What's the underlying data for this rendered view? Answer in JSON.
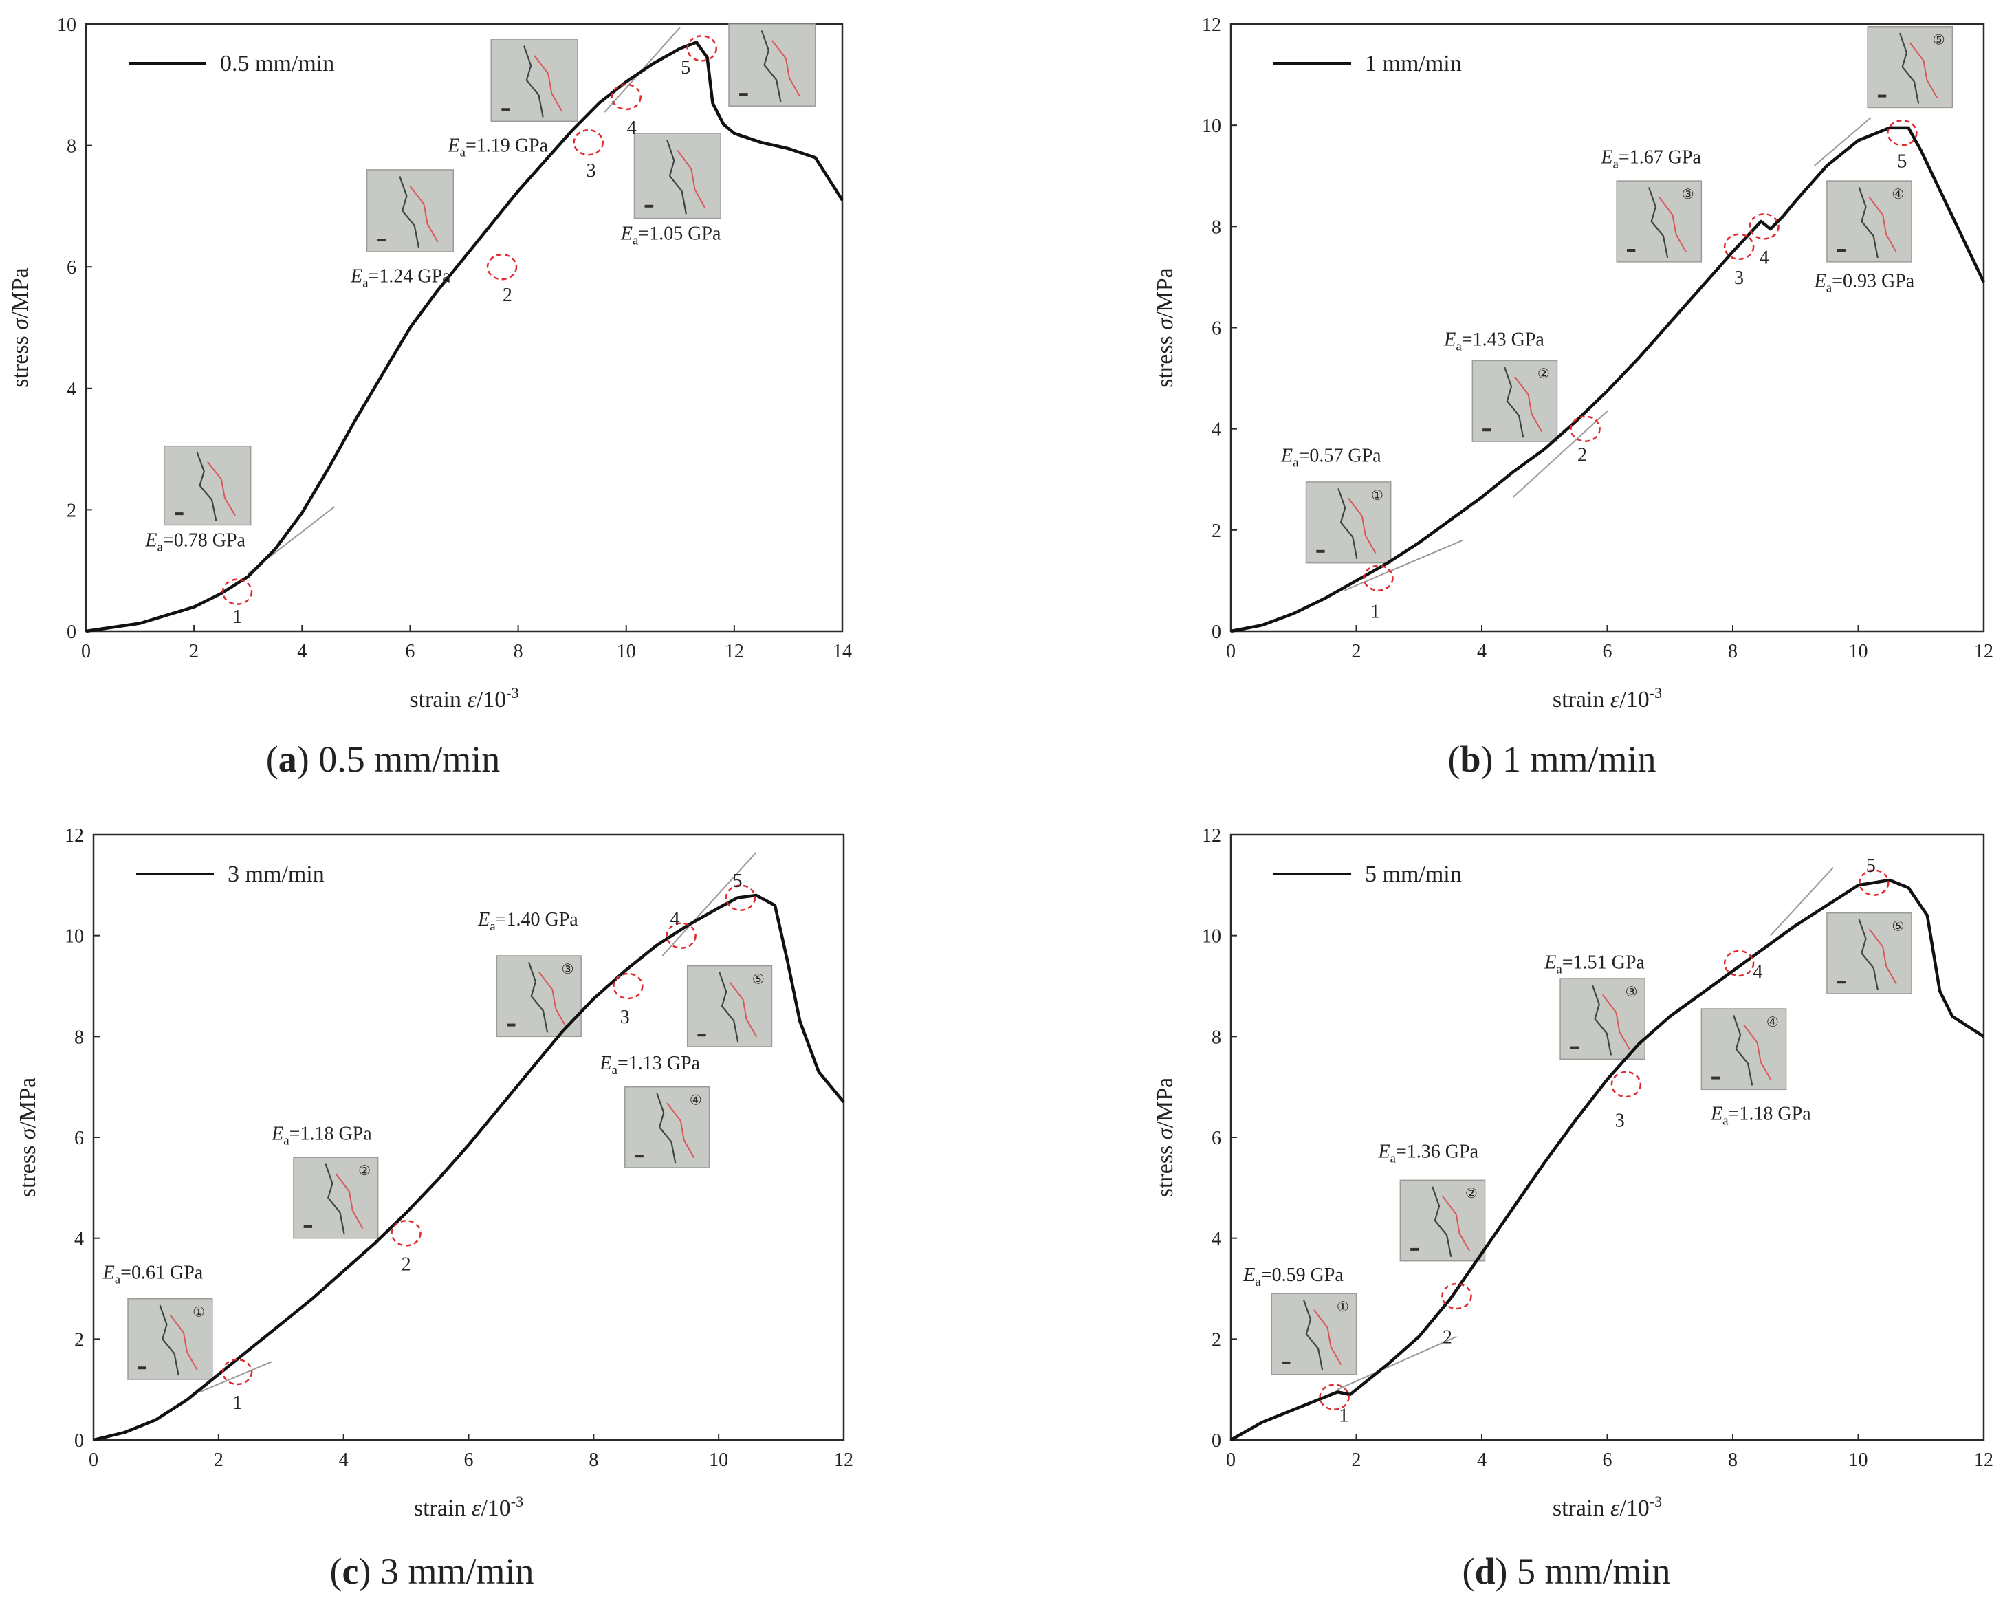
{
  "chart_data": [
    {
      "type": "line",
      "panel_id": "a",
      "caption": {
        "letter": "a",
        "text": " 0.5 mm/min"
      },
      "legend": "0.5 mm/min",
      "xlabel": {
        "prefix": "strain ",
        "symbol": "ε",
        "unit": "/10",
        "exp": "-3"
      },
      "ylabel": {
        "prefix": "stress ",
        "symbol": "σ",
        "unit": "/MPa"
      },
      "xlim": [
        0,
        14
      ],
      "ylim": [
        0,
        10
      ],
      "xticks": [
        0,
        2,
        4,
        6,
        8,
        10,
        12,
        14
      ],
      "yticks": [
        0,
        2,
        4,
        6,
        8,
        10
      ],
      "series": [
        {
          "name": "0.5 mm/min",
          "x": [
            0,
            1,
            2,
            2.5,
            3,
            3.5,
            4,
            4.5,
            5,
            5.5,
            6,
            6.5,
            7,
            7.5,
            8,
            8.5,
            9,
            9.5,
            10,
            10.5,
            11,
            11.3,
            11.5,
            11.6,
            11.8,
            12,
            12.5,
            13,
            13.5,
            14
          ],
          "y": [
            0,
            0.13,
            0.4,
            0.62,
            0.9,
            1.35,
            1.95,
            2.7,
            3.5,
            4.25,
            5.0,
            5.6,
            6.15,
            6.7,
            7.25,
            7.75,
            8.25,
            8.7,
            9.05,
            9.35,
            9.6,
            9.7,
            9.45,
            8.7,
            8.35,
            8.2,
            8.05,
            7.95,
            7.8,
            7.1
          ]
        }
      ],
      "markers": [
        {
          "label": "1",
          "x": 2.8,
          "y": 0.65,
          "lx": 2.8,
          "ly": 0.25
        },
        {
          "label": "2",
          "x": 7.7,
          "y": 6.0,
          "lx": 7.8,
          "ly": 5.55
        },
        {
          "label": "3",
          "x": 9.3,
          "y": 8.05,
          "lx": 9.35,
          "ly": 7.6
        },
        {
          "label": "4",
          "x": 10.0,
          "y": 8.8,
          "lx": 10.1,
          "ly": 8.3
        },
        {
          "label": "5",
          "x": 11.4,
          "y": 9.6,
          "lx": 11.1,
          "ly": 9.3
        }
      ],
      "tangents": [
        {
          "x1": 3.0,
          "y1": 0.95,
          "x2": 4.6,
          "y2": 2.05
        },
        {
          "x1": 9.6,
          "y1": 8.55,
          "x2": 11.0,
          "y2": 9.95
        }
      ],
      "annotations": [
        {
          "value": "0.78",
          "x": 1.1,
          "y": 1.4
        },
        {
          "value": "1.24",
          "x": 4.9,
          "y": 5.75
        },
        {
          "value": "1.19",
          "x": 6.7,
          "y": 7.9
        },
        {
          "value": "1.05",
          "x": 9.9,
          "y": 6.45
        }
      ],
      "photos": [
        {
          "label": "",
          "x0": 1.45,
          "x1": 3.05,
          "y0": 1.75,
          "y1": 3.05
        },
        {
          "label": "",
          "x0": 5.2,
          "x1": 6.8,
          "y0": 6.25,
          "y1": 7.6
        },
        {
          "label": "",
          "x0": 7.5,
          "x1": 9.1,
          "y0": 8.4,
          "y1": 9.75
        },
        {
          "label": "",
          "x0": 10.15,
          "x1": 11.75,
          "y0": 6.8,
          "y1": 8.2
        },
        {
          "label": "",
          "x0": 11.9,
          "x1": 13.5,
          "y0": 8.65,
          "y1": 10.0
        }
      ]
    },
    {
      "type": "line",
      "panel_id": "b",
      "caption": {
        "letter": "b",
        "text": " 1 mm/min"
      },
      "legend": "1 mm/min",
      "xlabel": {
        "prefix": "strain ",
        "symbol": "ε",
        "unit": "/10",
        "exp": "-3"
      },
      "ylabel": {
        "prefix": "stress ",
        "symbol": "σ",
        "unit": "/MPa"
      },
      "xlim": [
        0,
        12
      ],
      "ylim": [
        0,
        12
      ],
      "xticks": [
        0,
        2,
        4,
        6,
        8,
        10,
        12
      ],
      "yticks": [
        0,
        2,
        4,
        6,
        8,
        10,
        12
      ],
      "series": [
        {
          "name": "1 mm/min",
          "x": [
            0,
            0.5,
            1,
            1.5,
            2,
            2.5,
            3,
            3.5,
            4,
            4.5,
            5,
            5.5,
            6,
            6.5,
            7,
            7.5,
            8,
            8.3,
            8.45,
            8.6,
            8.8,
            9,
            9.5,
            10,
            10.5,
            10.8,
            11,
            11.5,
            12
          ],
          "y": [
            0,
            0.12,
            0.35,
            0.65,
            1.0,
            1.35,
            1.75,
            2.2,
            2.65,
            3.15,
            3.6,
            4.15,
            4.75,
            5.4,
            6.1,
            6.8,
            7.5,
            7.9,
            8.1,
            7.95,
            8.2,
            8.5,
            9.2,
            9.7,
            9.95,
            9.95,
            9.5,
            8.2,
            6.9
          ]
        }
      ],
      "markers": [
        {
          "label": "1",
          "x": 2.35,
          "y": 1.05,
          "lx": 2.3,
          "ly": 0.4
        },
        {
          "label": "2",
          "x": 5.65,
          "y": 4.0,
          "lx": 5.6,
          "ly": 3.5
        },
        {
          "label": "3",
          "x": 8.1,
          "y": 7.6,
          "lx": 8.1,
          "ly": 7.0
        },
        {
          "label": "4",
          "x": 8.5,
          "y": 8.0,
          "lx": 8.5,
          "ly": 7.4
        },
        {
          "label": "5",
          "x": 10.7,
          "y": 9.85,
          "lx": 10.7,
          "ly": 9.3
        }
      ],
      "tangents": [
        {
          "x1": 1.8,
          "y1": 0.8,
          "x2": 3.7,
          "y2": 1.8
        },
        {
          "x1": 4.5,
          "y1": 2.65,
          "x2": 6.0,
          "y2": 4.35
        },
        {
          "x1": 9.3,
          "y1": 9.2,
          "x2": 10.2,
          "y2": 10.15
        }
      ],
      "annotations": [
        {
          "value": "0.57",
          "x": 0.8,
          "y": 3.35
        },
        {
          "value": "1.43",
          "x": 3.4,
          "y": 5.65
        },
        {
          "value": "1.67",
          "x": 5.9,
          "y": 9.25
        },
        {
          "value": "0.93",
          "x": 9.3,
          "y": 6.8
        }
      ],
      "photos": [
        {
          "label": "①",
          "x0": 1.2,
          "x1": 2.55,
          "y0": 1.35,
          "y1": 2.95
        },
        {
          "label": "②",
          "x0": 3.85,
          "x1": 5.2,
          "y0": 3.75,
          "y1": 5.35
        },
        {
          "label": "③",
          "x0": 6.15,
          "x1": 7.5,
          "y0": 7.3,
          "y1": 8.9
        },
        {
          "label": "④",
          "x0": 9.5,
          "x1": 10.85,
          "y0": 7.3,
          "y1": 8.9
        },
        {
          "label": "⑤",
          "x0": 10.15,
          "x1": 11.5,
          "y0": 10.35,
          "y1": 11.95
        }
      ]
    },
    {
      "type": "line",
      "panel_id": "c",
      "caption": {
        "letter": "c",
        "text": " 3 mm/min"
      },
      "legend": "3 mm/min",
      "xlabel": {
        "prefix": "strain ",
        "symbol": "ε",
        "unit": "/10",
        "exp": "-3"
      },
      "ylabel": {
        "prefix": "stress ",
        "symbol": "σ",
        "unit": "/MPa"
      },
      "xlim": [
        0,
        12
      ],
      "ylim": [
        0,
        12
      ],
      "xticks": [
        0,
        2,
        4,
        6,
        8,
        10,
        12
      ],
      "yticks": [
        0,
        2,
        4,
        6,
        8,
        10,
        12
      ],
      "series": [
        {
          "name": "3 mm/min",
          "x": [
            0,
            0.5,
            1,
            1.5,
            2,
            2.5,
            3,
            3.5,
            4,
            4.5,
            5,
            5.5,
            6,
            6.5,
            7,
            7.5,
            8,
            8.5,
            9,
            9.5,
            10,
            10.3,
            10.6,
            10.9,
            11.1,
            11.3,
            11.6,
            12
          ],
          "y": [
            0,
            0.15,
            0.4,
            0.8,
            1.3,
            1.8,
            2.3,
            2.8,
            3.35,
            3.9,
            4.5,
            5.15,
            5.85,
            6.6,
            7.35,
            8.1,
            8.75,
            9.3,
            9.8,
            10.2,
            10.55,
            10.75,
            10.8,
            10.6,
            9.5,
            8.3,
            7.3,
            6.7
          ]
        }
      ],
      "markers": [
        {
          "label": "1",
          "x": 2.3,
          "y": 1.35,
          "lx": 2.3,
          "ly": 0.75
        },
        {
          "label": "2",
          "x": 5.0,
          "y": 4.1,
          "lx": 5.0,
          "ly": 3.5
        },
        {
          "label": "3",
          "x": 8.55,
          "y": 9.0,
          "lx": 8.5,
          "ly": 8.4
        },
        {
          "label": "4",
          "x": 9.4,
          "y": 10.0,
          "lx": 9.3,
          "ly": 10.35
        },
        {
          "label": "5",
          "x": 10.35,
          "y": 10.75,
          "lx": 10.3,
          "ly": 11.1
        }
      ],
      "tangents": [
        {
          "x1": 1.7,
          "y1": 0.95,
          "x2": 2.85,
          "y2": 1.55
        },
        {
          "x1": 9.1,
          "y1": 9.6,
          "x2": 10.6,
          "y2": 11.65
        }
      ],
      "annotations": [
        {
          "value": "0.61",
          "x": 0.15,
          "y": 3.2
        },
        {
          "value": "1.18",
          "x": 2.85,
          "y": 5.95
        },
        {
          "value": "1.40",
          "x": 6.15,
          "y": 10.2
        },
        {
          "value": "1.13",
          "x": 8.1,
          "y": 7.35
        }
      ],
      "photos": [
        {
          "label": "①",
          "x0": 0.55,
          "x1": 1.9,
          "y0": 1.2,
          "y1": 2.8
        },
        {
          "label": "②",
          "x0": 3.2,
          "x1": 4.55,
          "y0": 4.0,
          "y1": 5.6
        },
        {
          "label": "③",
          "x0": 6.45,
          "x1": 7.8,
          "y0": 8.0,
          "y1": 9.6
        },
        {
          "label": "⑤",
          "x0": 9.5,
          "x1": 10.85,
          "y0": 7.8,
          "y1": 9.4
        },
        {
          "label": "④",
          "x0": 8.5,
          "x1": 9.85,
          "y0": 5.4,
          "y1": 7.0
        }
      ]
    },
    {
      "type": "line",
      "panel_id": "d",
      "caption": {
        "letter": "d",
        "text": " 5 mm/min"
      },
      "legend": "5 mm/min",
      "xlabel": {
        "prefix": "strain ",
        "symbol": "ε",
        "unit": "/10",
        "exp": "-3"
      },
      "ylabel": {
        "prefix": "stress ",
        "symbol": "σ",
        "unit": "/MPa"
      },
      "xlim": [
        0,
        12
      ],
      "ylim": [
        0,
        12
      ],
      "xticks": [
        0,
        2,
        4,
        6,
        8,
        10,
        12
      ],
      "yticks": [
        0,
        2,
        4,
        6,
        8,
        10,
        12
      ],
      "series": [
        {
          "name": "5 mm/min",
          "x": [
            0,
            0.5,
            1,
            1.5,
            1.7,
            1.9,
            2.2,
            2.5,
            3,
            3.5,
            4,
            4.5,
            5,
            5.5,
            6,
            6.5,
            7,
            7.5,
            8,
            8.5,
            9,
            9.5,
            10,
            10.5,
            10.8,
            11.1,
            11.3,
            11.5,
            12
          ],
          "y": [
            0,
            0.35,
            0.6,
            0.85,
            0.95,
            0.9,
            1.2,
            1.5,
            2.05,
            2.8,
            3.7,
            4.6,
            5.5,
            6.35,
            7.15,
            7.85,
            8.4,
            8.85,
            9.3,
            9.75,
            10.2,
            10.6,
            11.0,
            11.1,
            10.95,
            10.4,
            8.9,
            8.4,
            8.0
          ]
        }
      ],
      "markers": [
        {
          "label": "1",
          "x": 1.65,
          "y": 0.85,
          "lx": 1.8,
          "ly": 0.5
        },
        {
          "label": "2",
          "x": 3.6,
          "y": 2.85,
          "lx": 3.45,
          "ly": 2.05
        },
        {
          "label": "3",
          "x": 6.3,
          "y": 7.05,
          "lx": 6.2,
          "ly": 6.35
        },
        {
          "label": "4",
          "x": 8.1,
          "y": 9.45,
          "lx": 8.4,
          "ly": 9.3
        },
        {
          "label": "5",
          "x": 10.25,
          "y": 11.05,
          "lx": 10.2,
          "ly": 11.4
        }
      ],
      "tangents": [
        {
          "x1": 1.7,
          "y1": 1.0,
          "x2": 3.6,
          "y2": 2.05
        },
        {
          "x1": 8.6,
          "y1": 10.0,
          "x2": 9.6,
          "y2": 11.35
        }
      ],
      "annotations": [
        {
          "value": "0.59",
          "x": 0.2,
          "y": 3.15
        },
        {
          "value": "1.36",
          "x": 2.35,
          "y": 5.6
        },
        {
          "value": "1.51",
          "x": 5.0,
          "y": 9.35
        },
        {
          "value": "1.18",
          "x": 7.65,
          "y": 6.35
        }
      ],
      "photos": [
        {
          "label": "①",
          "x0": 0.65,
          "x1": 2.0,
          "y0": 1.3,
          "y1": 2.9
        },
        {
          "label": "②",
          "x0": 2.7,
          "x1": 4.05,
          "y0": 3.55,
          "y1": 5.15
        },
        {
          "label": "③",
          "x0": 5.25,
          "x1": 6.6,
          "y0": 7.55,
          "y1": 9.15
        },
        {
          "label": "④",
          "x0": 7.5,
          "x1": 8.85,
          "y0": 6.95,
          "y1": 8.55
        },
        {
          "label": "⑤",
          "x0": 9.5,
          "x1": 10.85,
          "y0": 8.85,
          "y1": 10.45
        }
      ]
    }
  ],
  "annotation_text": {
    "symbol": "E",
    "sub": "a",
    "prefix": "=",
    "unit": " GPa"
  },
  "colors": {
    "curve": "#111111",
    "marker": "#e0282d",
    "tangent": "#9a9a9a",
    "photo": "#c7c9c5",
    "crack": "#3f4640",
    "crack_red": "#d9585a",
    "frame": "#2a2a2a"
  }
}
